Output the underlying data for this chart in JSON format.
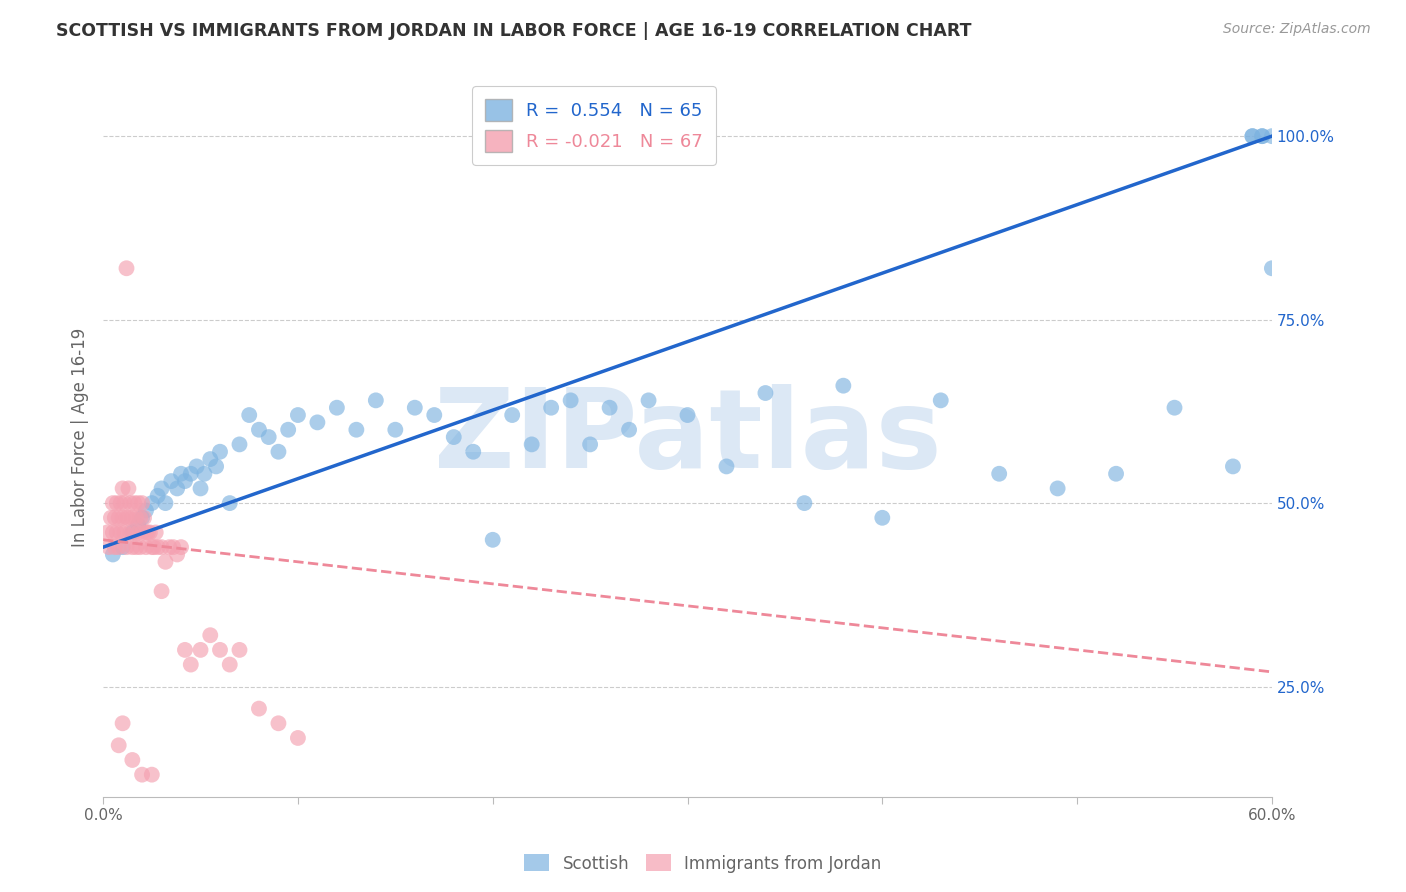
{
  "title": "SCOTTISH VS IMMIGRANTS FROM JORDAN IN LABOR FORCE | AGE 16-19 CORRELATION CHART",
  "source": "Source: ZipAtlas.com",
  "ylabel": "In Labor Force | Age 16-19",
  "xlim": [
    0.0,
    0.6
  ],
  "ylim": [
    0.1,
    1.08
  ],
  "xticks": [
    0.0,
    0.1,
    0.2,
    0.3,
    0.4,
    0.5,
    0.6
  ],
  "xticklabels": [
    "0.0%",
    "",
    "",
    "",
    "",
    "",
    "60.0%"
  ],
  "yticks_right": [
    0.25,
    0.5,
    0.75,
    1.0
  ],
  "yticklabels_right": [
    "25.0%",
    "50.0%",
    "75.0%",
    "100.0%"
  ],
  "blue_R": 0.554,
  "blue_N": 65,
  "pink_R": -0.021,
  "pink_N": 67,
  "blue_color": "#7EB3E0",
  "pink_color": "#F4A0B0",
  "blue_line_color": "#2266CC",
  "pink_line_color": "#EE8899",
  "watermark": "ZIPatlas",
  "watermark_color": "#DCE8F5",
  "legend_blue_label": "Scottish",
  "legend_pink_label": "Immigrants from Jordan",
  "blue_scatter_x": [
    0.005,
    0.01,
    0.015,
    0.018,
    0.02,
    0.022,
    0.025,
    0.028,
    0.03,
    0.032,
    0.035,
    0.038,
    0.04,
    0.042,
    0.045,
    0.048,
    0.05,
    0.052,
    0.055,
    0.058,
    0.06,
    0.065,
    0.07,
    0.075,
    0.08,
    0.085,
    0.09,
    0.095,
    0.1,
    0.11,
    0.12,
    0.13,
    0.14,
    0.15,
    0.16,
    0.17,
    0.18,
    0.19,
    0.2,
    0.21,
    0.22,
    0.23,
    0.24,
    0.25,
    0.26,
    0.27,
    0.28,
    0.3,
    0.32,
    0.34,
    0.36,
    0.38,
    0.4,
    0.43,
    0.46,
    0.49,
    0.52,
    0.55,
    0.58,
    0.59,
    0.59,
    0.595,
    0.595,
    0.6,
    0.6
  ],
  "blue_scatter_y": [
    0.43,
    0.44,
    0.46,
    0.47,
    0.48,
    0.49,
    0.5,
    0.51,
    0.52,
    0.5,
    0.53,
    0.52,
    0.54,
    0.53,
    0.54,
    0.55,
    0.52,
    0.54,
    0.56,
    0.55,
    0.57,
    0.5,
    0.58,
    0.62,
    0.6,
    0.59,
    0.57,
    0.6,
    0.62,
    0.61,
    0.63,
    0.6,
    0.64,
    0.6,
    0.63,
    0.62,
    0.59,
    0.57,
    0.45,
    0.62,
    0.58,
    0.63,
    0.64,
    0.58,
    0.63,
    0.6,
    0.64,
    0.62,
    0.55,
    0.65,
    0.5,
    0.66,
    0.48,
    0.64,
    0.54,
    0.52,
    0.54,
    0.63,
    0.55,
    1.0,
    1.0,
    1.0,
    1.0,
    1.0,
    0.82
  ],
  "pink_scatter_x": [
    0.002,
    0.003,
    0.004,
    0.005,
    0.005,
    0.006,
    0.006,
    0.007,
    0.007,
    0.008,
    0.008,
    0.009,
    0.009,
    0.01,
    0.01,
    0.011,
    0.011,
    0.012,
    0.012,
    0.013,
    0.013,
    0.014,
    0.014,
    0.015,
    0.015,
    0.016,
    0.016,
    0.017,
    0.017,
    0.018,
    0.018,
    0.019,
    0.019,
    0.02,
    0.02,
    0.021,
    0.022,
    0.022,
    0.023,
    0.024,
    0.025,
    0.026,
    0.027,
    0.028,
    0.03,
    0.032,
    0.034,
    0.036,
    0.038,
    0.04,
    0.042,
    0.045,
    0.05,
    0.055,
    0.06,
    0.065,
    0.07,
    0.08,
    0.09,
    0.1,
    0.012,
    0.01,
    0.008,
    0.015,
    0.02,
    0.025,
    0.03
  ],
  "pink_scatter_y": [
    0.46,
    0.44,
    0.48,
    0.46,
    0.5,
    0.44,
    0.48,
    0.46,
    0.5,
    0.48,
    0.44,
    0.5,
    0.46,
    0.48,
    0.52,
    0.46,
    0.5,
    0.48,
    0.44,
    0.48,
    0.52,
    0.46,
    0.5,
    0.48,
    0.44,
    0.5,
    0.46,
    0.48,
    0.44,
    0.5,
    0.46,
    0.48,
    0.44,
    0.5,
    0.46,
    0.48,
    0.46,
    0.44,
    0.46,
    0.46,
    0.44,
    0.44,
    0.46,
    0.44,
    0.44,
    0.42,
    0.44,
    0.44,
    0.43,
    0.44,
    0.3,
    0.28,
    0.3,
    0.32,
    0.3,
    0.28,
    0.3,
    0.22,
    0.2,
    0.18,
    0.82,
    0.2,
    0.17,
    0.15,
    0.13,
    0.13,
    0.38
  ],
  "grid_color": "#CCCCCC",
  "bg_color": "#FFFFFF",
  "title_color": "#333333",
  "axis_color": "#666666"
}
